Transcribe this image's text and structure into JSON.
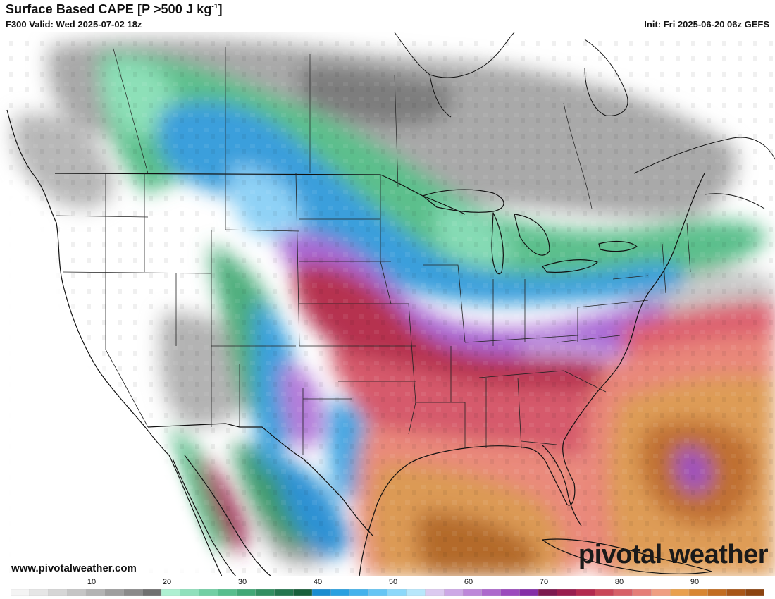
{
  "header": {
    "title_main": "Surface Based CAPE [P >500 J kg",
    "title_exp": "-1",
    "title_end": "]",
    "valid": "F300 Valid: Wed 2025-07-02 18z",
    "init": "Init: Fri 2025-06-20 06z GEFS"
  },
  "footer": {
    "website": "www.pivotalweather.com",
    "brand": "pivotal weather"
  },
  "colorbar": {
    "labels": [
      "10",
      "20",
      "30",
      "40",
      "50",
      "60",
      "70",
      "80",
      "90"
    ],
    "colors": [
      "#f4f4f4",
      "#e6e6e6",
      "#d6d6d6",
      "#c5c5c5",
      "#b3b3b3",
      "#9e9e9e",
      "#8a8a8a",
      "#707070",
      "#aef0d2",
      "#90e0bc",
      "#72cfa4",
      "#58be8e",
      "#42a877",
      "#338f62",
      "#25764f",
      "#1a5f3c",
      "#1b8dd0",
      "#2aa0e0",
      "#44b2ec",
      "#66c5f4",
      "#8dd8fa",
      "#b8e7fb",
      "#dccaf0",
      "#cda8e6",
      "#bd87d9",
      "#ad68cc",
      "#9b4abd",
      "#852fa7",
      "#7c1a50",
      "#981d4e",
      "#b3294e",
      "#c94658",
      "#d76068",
      "#e57e78",
      "#ef9e82",
      "#e9a04e",
      "#d88632",
      "#c26d22",
      "#a85618",
      "#8c4410"
    ]
  },
  "map": {
    "fields": {
      "ocean": "#ffffff",
      "gray_low": "#bdbdbd",
      "gray_mid": "#969696",
      "gray_dark": "#6e6e6e",
      "green_light": "#86dbb5",
      "green_mid": "#4fb381",
      "green_dark": "#2c7c4f",
      "blue": "#3ea0dc",
      "blue_light": "#8fd2f6",
      "purple": "#a66ad3",
      "lavender": "#c8a3e6",
      "maroon": "#b6304c",
      "red": "#d9596b",
      "salmon": "#e9877a",
      "orange": "#dd9a52",
      "brown": "#b66a2c"
    }
  }
}
